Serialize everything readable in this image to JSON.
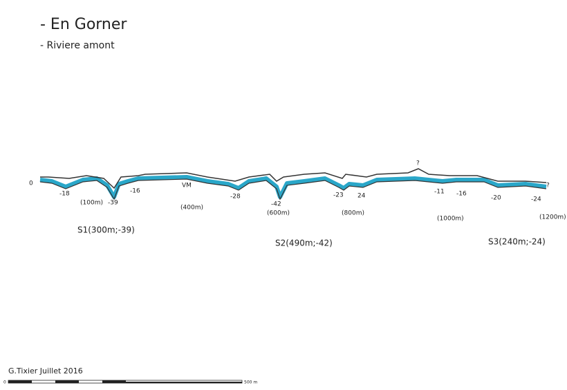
{
  "header": {
    "lines": [
      "- En Gorner",
      "- Riviere amont"
    ]
  },
  "profile": {
    "depth_labels": [
      "0",
      "-18",
      "-39",
      "-16",
      "VM",
      "-28",
      "-42",
      "-23",
      "24",
      "-11",
      "-16",
      "-20",
      "-24"
    ],
    "distance_labels": [
      "(100m)",
      "(400m)",
      "(600m)",
      "(800m)",
      "(1000m)",
      "(1200m)"
    ],
    "unknown_marks": [
      "?",
      "?"
    ],
    "sumps": [
      "S1(300m;-39)",
      "S2(490m;-42)",
      "S3(240m;-24)"
    ]
  },
  "footer": {
    "author": "G.Tixier Juillet 2016",
    "scale_start": "0",
    "scale_end": "500 m"
  }
}
